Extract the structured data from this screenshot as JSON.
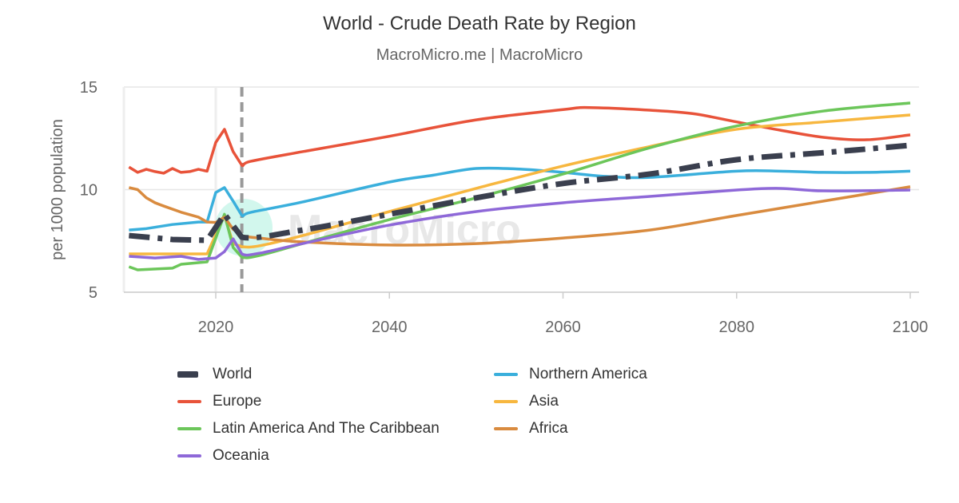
{
  "chart_data": {
    "type": "line",
    "title": "World - Crude Death Rate by Region",
    "subtitle": "MacroMicro.me | MacroMicro",
    "ylabel": "per 1000 population",
    "xlabel": "",
    "xlim": [
      2010,
      2101
    ],
    "ylim": [
      5,
      15
    ],
    "xticks": [
      "2020",
      "2040",
      "2060",
      "2080",
      "2100"
    ],
    "yticks": [
      "5",
      "10",
      "15"
    ],
    "grid": true,
    "forecast_marker_year": 2023,
    "legend_position": "bottom",
    "series": [
      {
        "name": "World",
        "color": "#3a3f4e",
        "style": "dashdot",
        "points": [
          [
            2010,
            7.76
          ],
          [
            2015,
            7.57
          ],
          [
            2019,
            7.53
          ],
          [
            2021,
            8.8
          ],
          [
            2023,
            7.68
          ],
          [
            2030,
            8.03
          ],
          [
            2040,
            8.8
          ],
          [
            2050,
            9.6
          ],
          [
            2060,
            10.3
          ],
          [
            2070,
            10.76
          ],
          [
            2080,
            11.46
          ],
          [
            2090,
            11.8
          ],
          [
            2100,
            12.16
          ]
        ]
      },
      {
        "name": "Northern America",
        "color": "#3aafdc",
        "points": [
          [
            2010,
            8.03
          ],
          [
            2012,
            8.1
          ],
          [
            2015,
            8.3
          ],
          [
            2018,
            8.42
          ],
          [
            2019,
            8.42
          ],
          [
            2020,
            9.86
          ],
          [
            2021,
            10.1
          ],
          [
            2022,
            9.44
          ],
          [
            2023,
            8.74
          ],
          [
            2024,
            8.89
          ],
          [
            2030,
            9.4
          ],
          [
            2040,
            10.37
          ],
          [
            2045,
            10.7
          ],
          [
            2050,
            11.03
          ],
          [
            2055,
            11.0
          ],
          [
            2060,
            10.84
          ],
          [
            2065,
            10.64
          ],
          [
            2070,
            10.6
          ],
          [
            2080,
            10.9
          ],
          [
            2085,
            10.9
          ],
          [
            2090,
            10.84
          ],
          [
            2095,
            10.84
          ],
          [
            2100,
            10.9
          ]
        ]
      },
      {
        "name": "Europe",
        "color": "#e8533a",
        "points": [
          [
            2010,
            11.1
          ],
          [
            2011,
            10.84
          ],
          [
            2012,
            10.99
          ],
          [
            2013,
            10.88
          ],
          [
            2014,
            10.8
          ],
          [
            2015,
            11.03
          ],
          [
            2016,
            10.84
          ],
          [
            2017,
            10.88
          ],
          [
            2018,
            10.99
          ],
          [
            2019,
            10.9
          ],
          [
            2020,
            12.3
          ],
          [
            2021,
            12.94
          ],
          [
            2022,
            11.85
          ],
          [
            2023,
            11.19
          ],
          [
            2024,
            11.38
          ],
          [
            2030,
            11.85
          ],
          [
            2040,
            12.6
          ],
          [
            2050,
            13.4
          ],
          [
            2060,
            13.9
          ],
          [
            2063,
            14.0
          ],
          [
            2070,
            13.87
          ],
          [
            2075,
            13.7
          ],
          [
            2080,
            13.3
          ],
          [
            2085,
            12.9
          ],
          [
            2090,
            12.55
          ],
          [
            2095,
            12.43
          ],
          [
            2100,
            12.67
          ]
        ]
      },
      {
        "name": "Asia",
        "color": "#f7b73f",
        "points": [
          [
            2010,
            6.87
          ],
          [
            2019,
            6.87
          ],
          [
            2021,
            8.74
          ],
          [
            2022,
            7.37
          ],
          [
            2023,
            7.22
          ],
          [
            2025,
            7.26
          ],
          [
            2030,
            7.76
          ],
          [
            2040,
            8.93
          ],
          [
            2050,
            10.06
          ],
          [
            2060,
            11.15
          ],
          [
            2070,
            12.1
          ],
          [
            2080,
            12.94
          ],
          [
            2090,
            13.3
          ],
          [
            2100,
            13.64
          ]
        ]
      },
      {
        "name": "Latin America And The Caribbean",
        "color": "#6cc65a",
        "points": [
          [
            2010,
            6.24
          ],
          [
            2011,
            6.09
          ],
          [
            2015,
            6.17
          ],
          [
            2016,
            6.36
          ],
          [
            2019,
            6.48
          ],
          [
            2021,
            8.8
          ],
          [
            2022,
            7.18
          ],
          [
            2023,
            6.71
          ],
          [
            2025,
            6.79
          ],
          [
            2030,
            7.37
          ],
          [
            2040,
            8.54
          ],
          [
            2050,
            9.6
          ],
          [
            2060,
            10.76
          ],
          [
            2070,
            12.04
          ],
          [
            2080,
            13.1
          ],
          [
            2090,
            13.83
          ],
          [
            2100,
            14.22
          ]
        ]
      },
      {
        "name": "Africa",
        "color": "#d98b3f",
        "points": [
          [
            2010,
            10.1
          ],
          [
            2011,
            10.0
          ],
          [
            2012,
            9.6
          ],
          [
            2013,
            9.36
          ],
          [
            2014,
            9.2
          ],
          [
            2016,
            8.9
          ],
          [
            2018,
            8.66
          ],
          [
            2019,
            8.42
          ],
          [
            2020,
            8.4
          ],
          [
            2021,
            8.66
          ],
          [
            2022,
            8.07
          ],
          [
            2023,
            7.76
          ],
          [
            2025,
            7.64
          ],
          [
            2030,
            7.45
          ],
          [
            2040,
            7.3
          ],
          [
            2050,
            7.37
          ],
          [
            2060,
            7.64
          ],
          [
            2070,
            8.03
          ],
          [
            2080,
            8.74
          ],
          [
            2090,
            9.44
          ],
          [
            2100,
            10.14
          ]
        ]
      },
      {
        "name": "Oceania",
        "color": "#8e68d8",
        "points": [
          [
            2010,
            6.75
          ],
          [
            2013,
            6.67
          ],
          [
            2016,
            6.75
          ],
          [
            2018,
            6.6
          ],
          [
            2020,
            6.67
          ],
          [
            2021,
            6.98
          ],
          [
            2022,
            7.6
          ],
          [
            2023,
            6.87
          ],
          [
            2025,
            6.9
          ],
          [
            2030,
            7.37
          ],
          [
            2040,
            8.27
          ],
          [
            2050,
            8.93
          ],
          [
            2060,
            9.36
          ],
          [
            2070,
            9.67
          ],
          [
            2080,
            9.98
          ],
          [
            2085,
            10.06
          ],
          [
            2090,
            9.94
          ],
          [
            2100,
            9.98
          ]
        ]
      }
    ]
  },
  "watermark": "MacroMicro",
  "legend_order": [
    0,
    1,
    2,
    3,
    4,
    5,
    6
  ]
}
